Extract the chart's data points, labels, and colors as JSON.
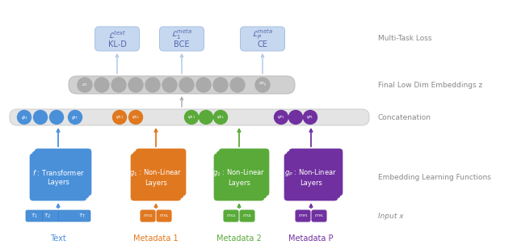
{
  "bg_color": "#ffffff",
  "blue_color": "#4a90d9",
  "blue_light": "#aec6e8",
  "blue_box": "#c5d8f0",
  "orange_color": "#e07820",
  "green_color": "#5aaa3a",
  "purple_color": "#7030a0",
  "gray_circle": "#aaaaaa",
  "concat_bar_color": "#e4e4e4",
  "embed_bar_color": "#d0d0d0",
  "right_label_color": "#888888",
  "right_labels": [
    "Multi-Task Loss",
    "Final Low Dim Embeddings z",
    "Concatenation",
    "Embedding Learning Functions",
    "Input x"
  ],
  "bottom_labels": [
    "Text",
    "Metadata 1",
    "Metadata 2",
    "Metadata P"
  ],
  "loss_labels": [
    [
      "$\\mathcal{L}^{text}$",
      "KL-D"
    ],
    [
      "$\\mathcal{L}_1^{meta}$",
      "BCE"
    ],
    [
      "$\\mathcal{L}_P^{meta}$",
      "CE"
    ]
  ]
}
